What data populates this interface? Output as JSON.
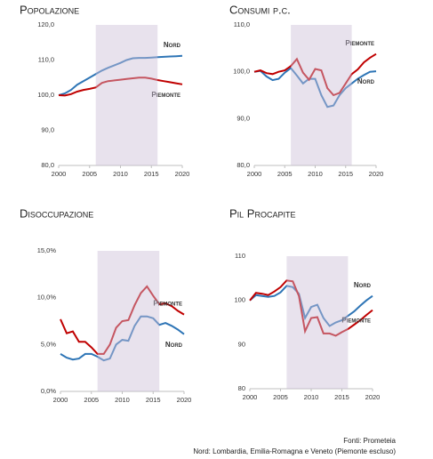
{
  "chart_data": [
    {
      "type": "line",
      "title": "Popolazione",
      "x": [
        2000,
        2001,
        2002,
        2003,
        2004,
        2005,
        2006,
        2007,
        2008,
        2009,
        2010,
        2011,
        2012,
        2013,
        2014,
        2015,
        2016,
        2017,
        2018,
        2019,
        2020
      ],
      "xlim": [
        2000,
        2020
      ],
      "xticks": [
        2000,
        2005,
        2010,
        2015,
        2020
      ],
      "ylim": [
        80,
        120
      ],
      "yticks": [
        {
          "value": 80,
          "label": "80,0"
        },
        {
          "value": 90,
          "label": "90,0"
        },
        {
          "value": 100,
          "label": "100,0"
        },
        {
          "value": 110,
          "label": "110,0"
        },
        {
          "value": 120,
          "label": "120,0"
        }
      ],
      "highlight": [
        2006,
        2016
      ],
      "series": [
        {
          "name": "Nord",
          "color": "#2e75b6",
          "values": [
            100,
            100.5,
            101.5,
            103,
            104,
            105,
            106,
            107,
            107.8,
            108.5,
            109.2,
            110,
            110.5,
            110.6,
            110.6,
            110.7,
            110.8,
            110.9,
            111,
            111.1,
            111.2
          ]
        },
        {
          "name": "Piemonte",
          "color": "#c00000",
          "values": [
            100,
            99.9,
            100.3,
            101,
            101.5,
            101.8,
            102.2,
            103.5,
            104,
            104.2,
            104.4,
            104.6,
            104.8,
            105,
            105,
            104.7,
            104.3,
            104,
            103.7,
            103.4,
            103.1
          ]
        }
      ]
    },
    {
      "type": "line",
      "title": "Consumi p.c.",
      "x": [
        2000,
        2001,
        2002,
        2003,
        2004,
        2005,
        2006,
        2007,
        2008,
        2009,
        2010,
        2011,
        2012,
        2013,
        2014,
        2015,
        2016,
        2017,
        2018,
        2019,
        2020
      ],
      "xlim": [
        2000,
        2020
      ],
      "xticks": [
        2000,
        2005,
        2010,
        2015,
        2020
      ],
      "ylim": [
        80,
        110
      ],
      "yticks": [
        {
          "value": 80,
          "label": "80,0"
        },
        {
          "value": 90,
          "label": "90,0"
        },
        {
          "value": 100,
          "label": "100,0"
        },
        {
          "value": 110,
          "label": "110,0"
        }
      ],
      "highlight": [
        2006,
        2016
      ],
      "series": [
        {
          "name": "Nord",
          "color": "#2e75b6",
          "values": [
            100,
            100.2,
            99,
            98.2,
            98.5,
            99.8,
            100.8,
            99.2,
            97.5,
            98.5,
            98.5,
            95,
            92.5,
            92.8,
            95,
            96.5,
            97.5,
            98.5,
            99.3,
            100,
            100.1
          ]
        },
        {
          "name": "Piemonte",
          "color": "#c00000",
          "values": [
            100,
            100.3,
            99.7,
            99.5,
            100,
            100.3,
            101.2,
            102.7,
            99.8,
            98.3,
            100.6,
            100.3,
            96.5,
            95,
            95.5,
            97.5,
            99.5,
            100.5,
            102,
            103,
            103.8
          ]
        }
      ]
    },
    {
      "type": "line",
      "title": "Disoccupazione",
      "x": [
        2000,
        2001,
        2002,
        2003,
        2004,
        2005,
        2006,
        2007,
        2008,
        2009,
        2010,
        2011,
        2012,
        2013,
        2014,
        2015,
        2016,
        2017,
        2018,
        2019,
        2020
      ],
      "xlim": [
        2000,
        2020
      ],
      "xticks": [
        2000,
        2005,
        2010,
        2015,
        2020
      ],
      "ylim": [
        0,
        15
      ],
      "yticks": [
        {
          "value": 0,
          "label": "0,0%"
        },
        {
          "value": 5,
          "label": "5,0%"
        },
        {
          "value": 10,
          "label": "10,0%"
        },
        {
          "value": 15,
          "label": "15,0%"
        }
      ],
      "highlight": [
        2006,
        2016
      ],
      "series": [
        {
          "name": "Nord",
          "color": "#2e75b6",
          "values": [
            4,
            3.6,
            3.4,
            3.5,
            4,
            4,
            3.7,
            3.3,
            3.5,
            5,
            5.5,
            5.4,
            7,
            8,
            8,
            7.8,
            7.1,
            7.3,
            7,
            6.6,
            6.1
          ]
        },
        {
          "name": "Piemonte",
          "color": "#c00000",
          "values": [
            7.7,
            6.2,
            6.4,
            5.3,
            5.3,
            4.7,
            4,
            4,
            5,
            6.8,
            7.5,
            7.6,
            9.2,
            10.5,
            11.2,
            10.2,
            9.3,
            9.4,
            9.1,
            8.6,
            8.2
          ]
        }
      ]
    },
    {
      "type": "line",
      "title": "Pil Procapite",
      "x": [
        2000,
        2001,
        2002,
        2003,
        2004,
        2005,
        2006,
        2007,
        2008,
        2009,
        2010,
        2011,
        2012,
        2013,
        2014,
        2015,
        2016,
        2017,
        2018,
        2019,
        2020
      ],
      "xlim": [
        2000,
        2020
      ],
      "xticks": [
        2000,
        2005,
        2010,
        2015,
        2020
      ],
      "ylim": [
        80,
        110
      ],
      "yticks": [
        80,
        90,
        100,
        110
      ],
      "highlight": [
        2006,
        2016
      ],
      "series": [
        {
          "name": "Nord",
          "color": "#2e75b6",
          "values": [
            100,
            101.2,
            101,
            100.8,
            101,
            101.8,
            103.3,
            103,
            101.5,
            96,
            98.5,
            99,
            96,
            94.2,
            95,
            95.5,
            96.5,
            97.5,
            98.8,
            100,
            101
          ]
        },
        {
          "name": "Piemonte",
          "color": "#c00000",
          "values": [
            100,
            101.7,
            101.5,
            101.2,
            102,
            103,
            104.5,
            104.3,
            101,
            93,
            96,
            96.2,
            92.5,
            92.5,
            92,
            92.8,
            93.5,
            94.5,
            95.5,
            96.7,
            97.8
          ]
        }
      ]
    }
  ],
  "footer": [
    "Fonti: Prometeia",
    "Nord: Lombardia, Emilia-Romagna e Veneto (Piemonte escluso)"
  ]
}
